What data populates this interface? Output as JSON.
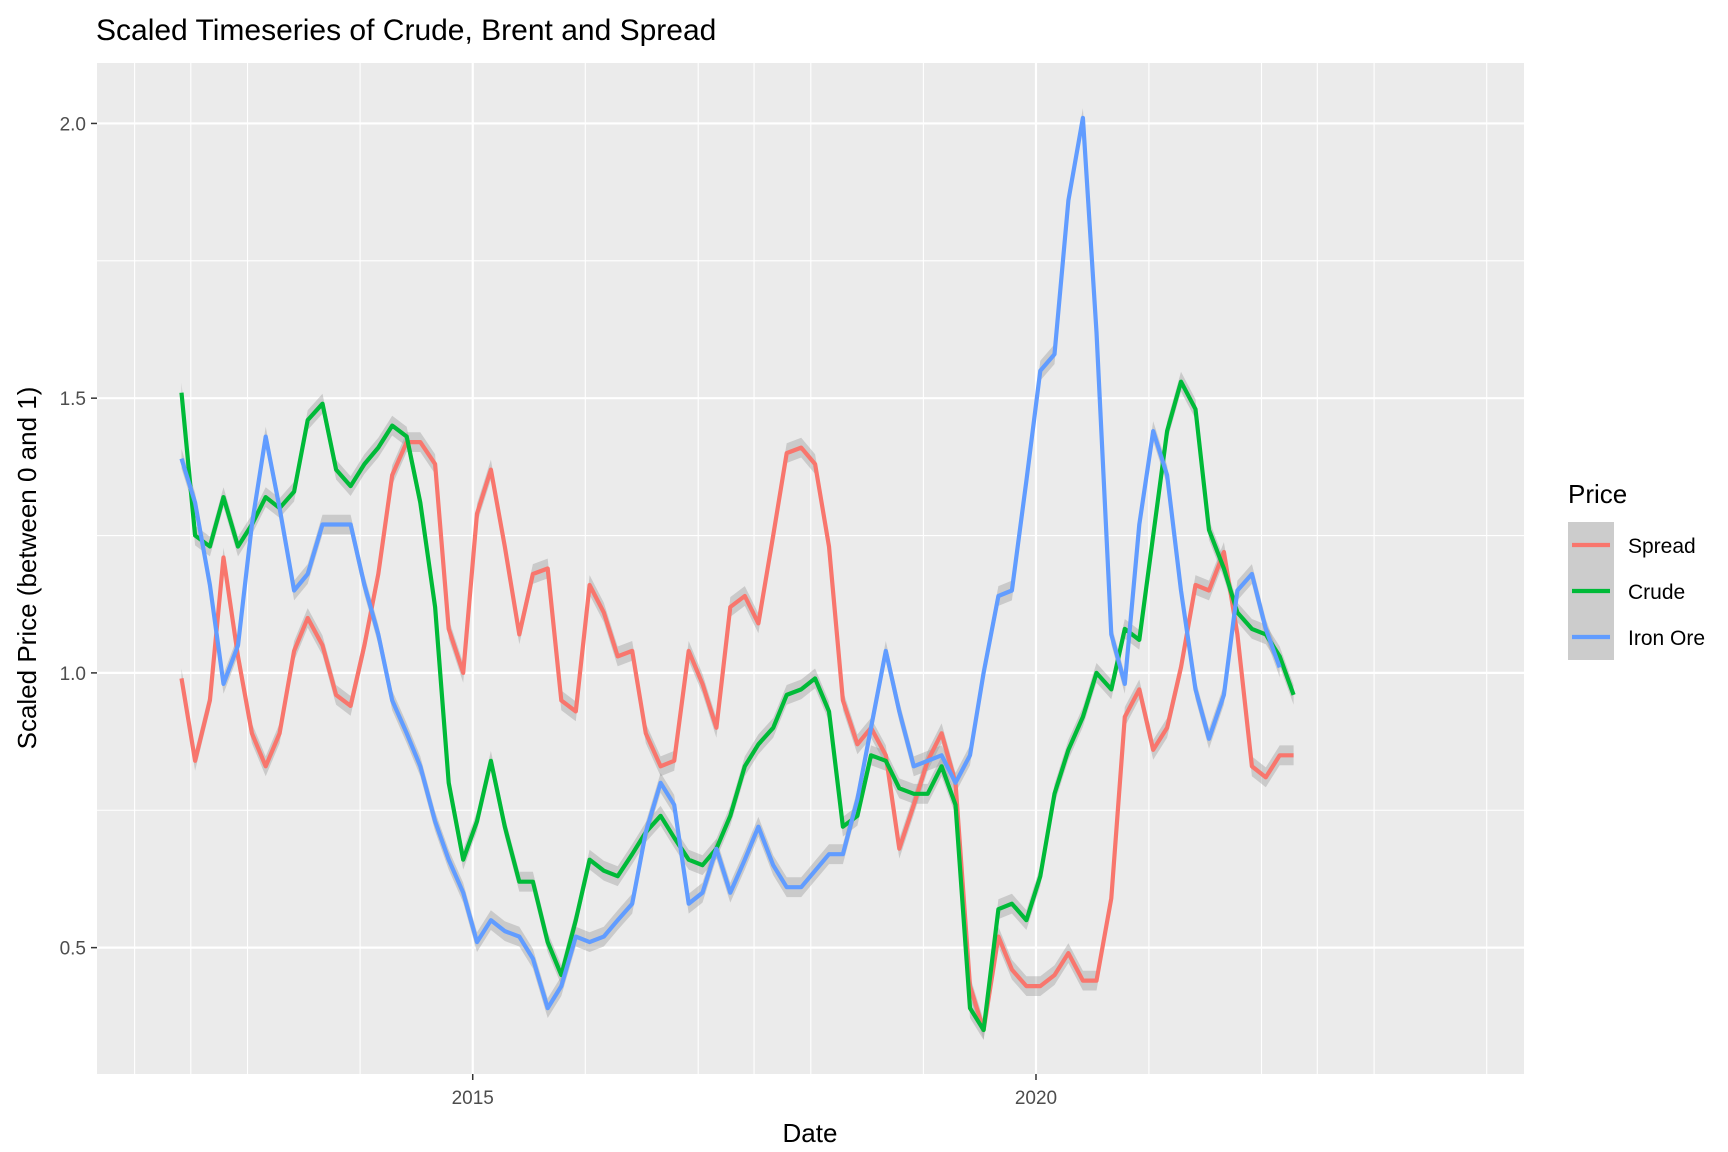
{
  "chart_data": {
    "type": "line",
    "title": "Scaled Timeseries of Crude, Brent and Spread",
    "xlabel": "Date",
    "ylabel": "Scaled Price (between 0 and 1)",
    "x_axis": {
      "type": "date",
      "range": [
        "2011-09-01",
        "2024-05-01"
      ],
      "tick_labels": [
        "2015",
        "2020"
      ]
    },
    "y_axis": {
      "range": [
        0.27,
        2.11
      ],
      "tick_values": [
        0.5,
        1.0,
        1.5,
        2.0
      ],
      "tick_labels": [
        "0.5",
        "1.0",
        "1.5",
        "2.0"
      ]
    },
    "grid": true,
    "panel_background": "#ebebeb",
    "legend": {
      "title": "Price",
      "position": "right"
    },
    "series": [
      {
        "name": "Spread",
        "color": "#f8766d",
        "points": [
          [
            "2012-06-01",
            0.99
          ],
          [
            "2012-07-15",
            0.84
          ],
          [
            "2012-09-01",
            0.95
          ],
          [
            "2012-10-15",
            1.21
          ],
          [
            "2012-12-01",
            1.03
          ],
          [
            "2013-01-15",
            0.89
          ],
          [
            "2013-03-01",
            0.83
          ],
          [
            "2013-04-15",
            0.89
          ],
          [
            "2013-06-01",
            1.04
          ],
          [
            "2013-07-15",
            1.1
          ],
          [
            "2013-09-01",
            1.05
          ],
          [
            "2013-10-15",
            0.96
          ],
          [
            "2013-12-01",
            0.94
          ],
          [
            "2014-01-15",
            1.05
          ],
          [
            "2014-03-01",
            1.18
          ],
          [
            "2014-04-15",
            1.36
          ],
          [
            "2014-06-01",
            1.42
          ],
          [
            "2014-07-15",
            1.42
          ],
          [
            "2014-09-01",
            1.38
          ],
          [
            "2014-10-15",
            1.08
          ],
          [
            "2014-12-01",
            1.0
          ],
          [
            "2015-01-15",
            1.29
          ],
          [
            "2015-03-01",
            1.37
          ],
          [
            "2015-04-15",
            1.23
          ],
          [
            "2015-06-01",
            1.07
          ],
          [
            "2015-07-15",
            1.18
          ],
          [
            "2015-09-01",
            1.19
          ],
          [
            "2015-10-15",
            0.95
          ],
          [
            "2015-12-01",
            0.93
          ],
          [
            "2016-01-15",
            1.16
          ],
          [
            "2016-03-01",
            1.11
          ],
          [
            "2016-04-15",
            1.03
          ],
          [
            "2016-06-01",
            1.04
          ],
          [
            "2016-07-15",
            0.89
          ],
          [
            "2016-09-01",
            0.83
          ],
          [
            "2016-10-15",
            0.84
          ],
          [
            "2016-12-01",
            1.04
          ],
          [
            "2017-01-15",
            0.98
          ],
          [
            "2017-03-01",
            0.9
          ],
          [
            "2017-04-15",
            1.12
          ],
          [
            "2017-06-01",
            1.14
          ],
          [
            "2017-07-15",
            1.09
          ],
          [
            "2017-09-01",
            1.25
          ],
          [
            "2017-10-15",
            1.4
          ],
          [
            "2017-12-01",
            1.41
          ],
          [
            "2018-01-15",
            1.38
          ],
          [
            "2018-03-01",
            1.23
          ],
          [
            "2018-04-15",
            0.95
          ],
          [
            "2018-06-01",
            0.87
          ],
          [
            "2018-07-15",
            0.9
          ],
          [
            "2018-09-01",
            0.85
          ],
          [
            "2018-10-15",
            0.68
          ],
          [
            "2018-12-01",
            0.76
          ],
          [
            "2019-01-15",
            0.84
          ],
          [
            "2019-03-01",
            0.89
          ],
          [
            "2019-04-15",
            0.8
          ],
          [
            "2019-06-01",
            0.43
          ],
          [
            "2019-07-15",
            0.35
          ],
          [
            "2019-09-01",
            0.52
          ],
          [
            "2019-10-15",
            0.46
          ],
          [
            "2019-12-01",
            0.43
          ],
          [
            "2020-01-15",
            0.43
          ],
          [
            "2020-03-01",
            0.45
          ],
          [
            "2020-04-15",
            0.49
          ],
          [
            "2020-06-01",
            0.44
          ],
          [
            "2020-07-15",
            0.44
          ],
          [
            "2020-09-01",
            0.59
          ],
          [
            "2020-10-15",
            0.92
          ],
          [
            "2020-12-01",
            0.97
          ],
          [
            "2021-01-15",
            0.86
          ],
          [
            "2021-03-01",
            0.9
          ],
          [
            "2021-04-15",
            1.01
          ],
          [
            "2021-06-01",
            1.16
          ],
          [
            "2021-07-15",
            1.15
          ],
          [
            "2021-09-01",
            1.22
          ],
          [
            "2021-10-15",
            1.07
          ],
          [
            "2021-12-01",
            0.83
          ],
          [
            "2022-01-15",
            0.81
          ],
          [
            "2022-03-01",
            0.85
          ],
          [
            "2022-04-15",
            0.85
          ]
        ]
      },
      {
        "name": "Crude",
        "color": "#00ba38",
        "points": [
          [
            "2012-06-01",
            1.51
          ],
          [
            "2012-07-15",
            1.25
          ],
          [
            "2012-09-01",
            1.23
          ],
          [
            "2012-10-15",
            1.32
          ],
          [
            "2012-12-01",
            1.23
          ],
          [
            "2013-01-15",
            1.27
          ],
          [
            "2013-03-01",
            1.32
          ],
          [
            "2013-04-15",
            1.3
          ],
          [
            "2013-06-01",
            1.33
          ],
          [
            "2013-07-15",
            1.46
          ],
          [
            "2013-09-01",
            1.49
          ],
          [
            "2013-10-15",
            1.37
          ],
          [
            "2013-12-01",
            1.34
          ],
          [
            "2014-01-15",
            1.38
          ],
          [
            "2014-03-01",
            1.41
          ],
          [
            "2014-04-15",
            1.45
          ],
          [
            "2014-06-01",
            1.43
          ],
          [
            "2014-07-15",
            1.31
          ],
          [
            "2014-09-01",
            1.12
          ],
          [
            "2014-10-15",
            0.8
          ],
          [
            "2014-12-01",
            0.66
          ],
          [
            "2015-01-15",
            0.73
          ],
          [
            "2015-03-01",
            0.84
          ],
          [
            "2015-04-15",
            0.72
          ],
          [
            "2015-06-01",
            0.62
          ],
          [
            "2015-07-15",
            0.62
          ],
          [
            "2015-09-01",
            0.51
          ],
          [
            "2015-10-15",
            0.45
          ],
          [
            "2015-12-01",
            0.55
          ],
          [
            "2016-01-15",
            0.66
          ],
          [
            "2016-03-01",
            0.64
          ],
          [
            "2016-04-15",
            0.63
          ],
          [
            "2016-06-01",
            0.67
          ],
          [
            "2016-07-15",
            0.71
          ],
          [
            "2016-09-01",
            0.74
          ],
          [
            "2016-10-15",
            0.7
          ],
          [
            "2016-12-01",
            0.66
          ],
          [
            "2017-01-15",
            0.65
          ],
          [
            "2017-03-01",
            0.68
          ],
          [
            "2017-04-15",
            0.74
          ],
          [
            "2017-06-01",
            0.83
          ],
          [
            "2017-07-15",
            0.87
          ],
          [
            "2017-09-01",
            0.9
          ],
          [
            "2017-10-15",
            0.96
          ],
          [
            "2017-12-01",
            0.97
          ],
          [
            "2018-01-15",
            0.99
          ],
          [
            "2018-03-01",
            0.93
          ],
          [
            "2018-04-15",
            0.72
          ],
          [
            "2018-06-01",
            0.74
          ],
          [
            "2018-07-15",
            0.85
          ],
          [
            "2018-09-01",
            0.84
          ],
          [
            "2018-10-15",
            0.79
          ],
          [
            "2018-12-01",
            0.78
          ],
          [
            "2019-01-15",
            0.78
          ],
          [
            "2019-03-01",
            0.83
          ],
          [
            "2019-04-15",
            0.76
          ],
          [
            "2019-06-01",
            0.39
          ],
          [
            "2019-07-15",
            0.35
          ],
          [
            "2019-09-01",
            0.57
          ],
          [
            "2019-10-15",
            0.58
          ],
          [
            "2019-12-01",
            0.55
          ],
          [
            "2020-01-15",
            0.63
          ],
          [
            "2020-03-01",
            0.78
          ],
          [
            "2020-04-15",
            0.86
          ],
          [
            "2020-06-01",
            0.92
          ],
          [
            "2020-07-15",
            1.0
          ],
          [
            "2020-09-01",
            0.97
          ],
          [
            "2020-10-15",
            1.08
          ],
          [
            "2020-12-01",
            1.06
          ],
          [
            "2021-01-15",
            1.25
          ],
          [
            "2021-03-01",
            1.44
          ],
          [
            "2021-04-15",
            1.53
          ],
          [
            "2021-06-01",
            1.48
          ],
          [
            "2021-07-15",
            1.26
          ],
          [
            "2021-09-01",
            1.19
          ],
          [
            "2021-10-15",
            1.11
          ],
          [
            "2021-12-01",
            1.08
          ],
          [
            "2022-01-15",
            1.07
          ],
          [
            "2022-03-01",
            1.03
          ],
          [
            "2022-04-15",
            0.96
          ]
        ]
      },
      {
        "name": "Iron Ore",
        "color": "#619cff",
        "points": [
          [
            "2012-06-01",
            1.39
          ],
          [
            "2012-07-15",
            1.31
          ],
          [
            "2012-09-01",
            1.16
          ],
          [
            "2012-10-15",
            0.98
          ],
          [
            "2012-12-01",
            1.05
          ],
          [
            "2013-01-15",
            1.27
          ],
          [
            "2013-03-01",
            1.43
          ],
          [
            "2013-04-15",
            1.3
          ],
          [
            "2013-06-01",
            1.15
          ],
          [
            "2013-07-15",
            1.18
          ],
          [
            "2013-09-01",
            1.27
          ],
          [
            "2013-10-15",
            1.27
          ],
          [
            "2013-12-01",
            1.27
          ],
          [
            "2014-01-15",
            1.16
          ],
          [
            "2014-03-01",
            1.07
          ],
          [
            "2014-04-15",
            0.95
          ],
          [
            "2014-06-01",
            0.89
          ],
          [
            "2014-07-15",
            0.83
          ],
          [
            "2014-09-01",
            0.73
          ],
          [
            "2014-10-15",
            0.66
          ],
          [
            "2014-12-01",
            0.6
          ],
          [
            "2015-01-15",
            0.51
          ],
          [
            "2015-03-01",
            0.55
          ],
          [
            "2015-04-15",
            0.53
          ],
          [
            "2015-06-01",
            0.52
          ],
          [
            "2015-07-15",
            0.48
          ],
          [
            "2015-09-01",
            0.39
          ],
          [
            "2015-10-15",
            0.43
          ],
          [
            "2015-12-01",
            0.52
          ],
          [
            "2016-01-15",
            0.51
          ],
          [
            "2016-03-01",
            0.52
          ],
          [
            "2016-04-15",
            0.55
          ],
          [
            "2016-06-01",
            0.58
          ],
          [
            "2016-07-15",
            0.71
          ],
          [
            "2016-09-01",
            0.8
          ],
          [
            "2016-10-15",
            0.76
          ],
          [
            "2016-12-01",
            0.58
          ],
          [
            "2017-01-15",
            0.6
          ],
          [
            "2017-03-01",
            0.68
          ],
          [
            "2017-04-15",
            0.6
          ],
          [
            "2017-06-01",
            0.66
          ],
          [
            "2017-07-15",
            0.72
          ],
          [
            "2017-09-01",
            0.65
          ],
          [
            "2017-10-15",
            0.61
          ],
          [
            "2017-12-01",
            0.61
          ],
          [
            "2018-01-15",
            0.64
          ],
          [
            "2018-03-01",
            0.67
          ],
          [
            "2018-04-15",
            0.67
          ],
          [
            "2018-06-01",
            0.77
          ],
          [
            "2018-07-15",
            0.9
          ],
          [
            "2018-09-01",
            1.04
          ],
          [
            "2018-10-15",
            0.93
          ],
          [
            "2018-12-01",
            0.83
          ],
          [
            "2019-01-15",
            0.84
          ],
          [
            "2019-03-01",
            0.85
          ],
          [
            "2019-04-15",
            0.8
          ],
          [
            "2019-06-01",
            0.85
          ],
          [
            "2019-07-15",
            1.0
          ],
          [
            "2019-09-01",
            1.14
          ],
          [
            "2019-10-15",
            1.15
          ],
          [
            "2019-12-01",
            1.35
          ],
          [
            "2020-01-15",
            1.55
          ],
          [
            "2020-03-01",
            1.58
          ],
          [
            "2020-04-15",
            1.86
          ],
          [
            "2020-06-01",
            2.01
          ],
          [
            "2020-07-15",
            1.62
          ],
          [
            "2020-09-01",
            1.07
          ],
          [
            "2020-10-15",
            0.98
          ],
          [
            "2020-12-01",
            1.27
          ],
          [
            "2021-01-15",
            1.44
          ],
          [
            "2021-03-01",
            1.36
          ],
          [
            "2021-04-15",
            1.15
          ],
          [
            "2021-06-01",
            0.97
          ],
          [
            "2021-07-15",
            0.88
          ],
          [
            "2021-09-01",
            0.96
          ],
          [
            "2021-10-15",
            1.15
          ],
          [
            "2021-12-01",
            1.18
          ],
          [
            "2022-01-15",
            1.08
          ],
          [
            "2022-03-01",
            1.01
          ]
        ]
      }
    ]
  }
}
